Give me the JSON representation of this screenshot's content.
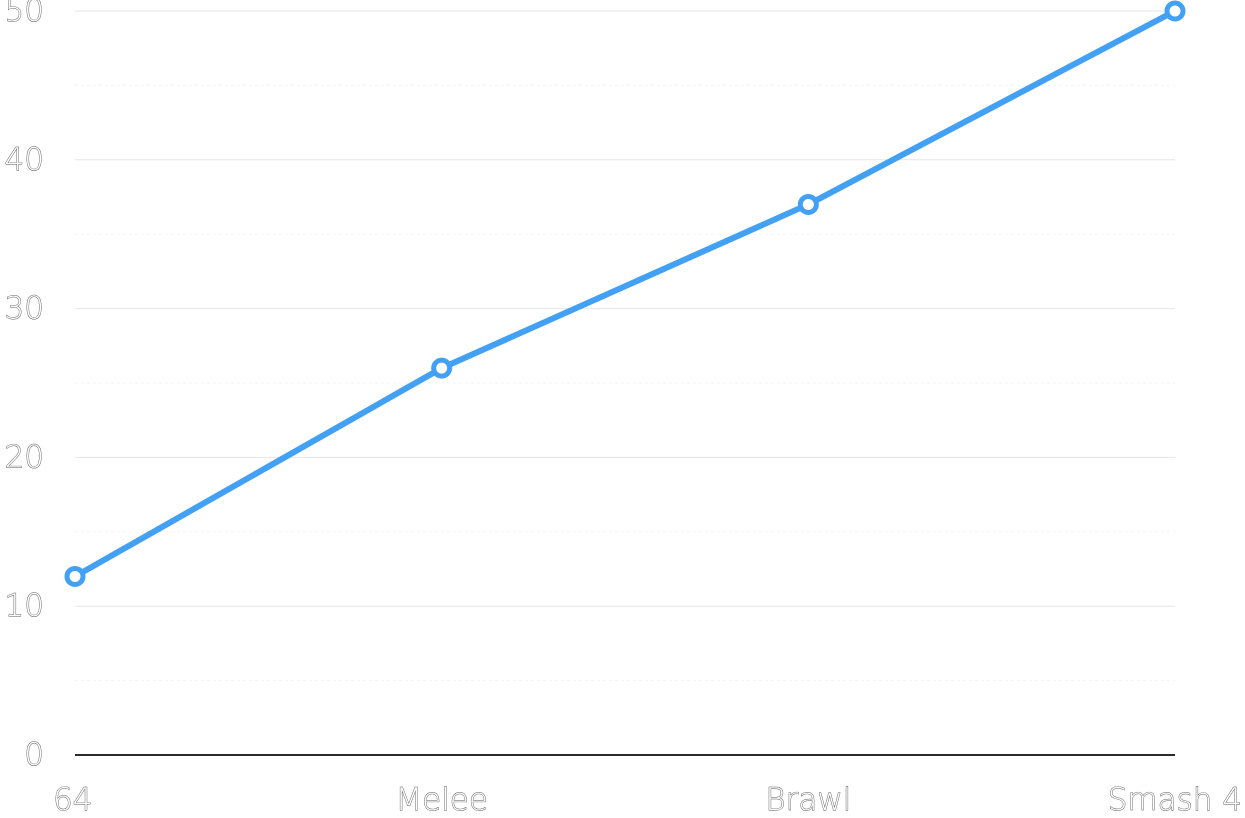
{
  "colors": {
    "series": "#42a0f5",
    "background": "#ffffff"
  },
  "chart_data": {
    "type": "line",
    "title": "",
    "xlabel": "",
    "ylabel": "",
    "categories": [
      "64",
      "Melee",
      "Brawl",
      "Smash 4"
    ],
    "series": [
      {
        "values": [
          12,
          26,
          37,
          50
        ]
      }
    ],
    "ylim": [
      0,
      50
    ],
    "yticks": [
      0,
      10,
      20,
      30,
      40,
      50
    ],
    "ytick_labels": [
      "0",
      "10",
      "20",
      "30",
      "40",
      "50"
    ],
    "grid": true,
    "legend": "none"
  }
}
